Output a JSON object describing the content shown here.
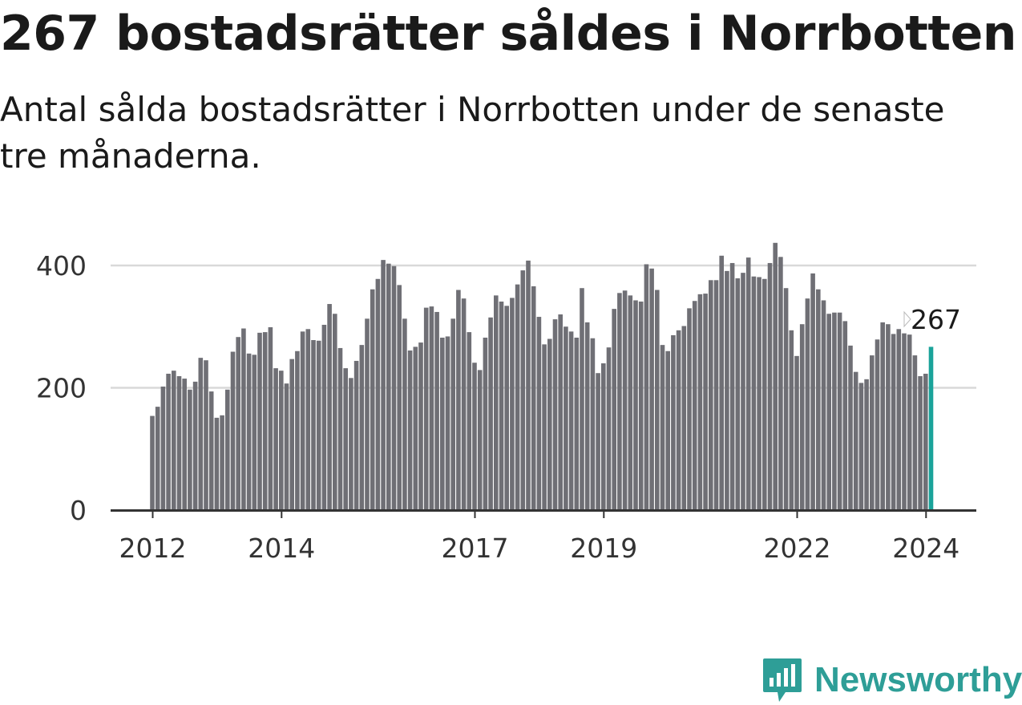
{
  "title": "267 bostadsrätter såldes i Norrbotten",
  "subtitle": "Antal sålda bostadsrätter i Norrbotten under de senaste tre månaderna.",
  "colors": {
    "bar": "#6f6f75",
    "highlight": "#1aa39a",
    "grid": "#d9d9d9",
    "axis": "#333333",
    "brand": "#2e9e97"
  },
  "brand": {
    "name": "Newsworthy",
    "icon": "newsworthy-logo-icon"
  },
  "chart_data": {
    "type": "bar",
    "title": "267 bostadsrätter såldes i Norrbotten",
    "subtitle": "Antal sålda bostadsrätter i Norrbotten under de senaste tre månaderna.",
    "xlabel": "",
    "ylabel": "",
    "ylim": [
      0,
      440
    ],
    "yticks": [
      0,
      200,
      400
    ],
    "xtick_labels": [
      "2012",
      "2014",
      "2017",
      "2019",
      "2022",
      "2024"
    ],
    "xtick_index": [
      0,
      24,
      60,
      84,
      120,
      144
    ],
    "grid": true,
    "legend": "none",
    "start": "2012-01",
    "frequency": "monthly",
    "highlight_label": "267",
    "values": [
      154,
      169,
      202,
      223,
      228,
      219,
      215,
      197,
      210,
      249,
      245,
      194,
      151,
      155,
      197,
      259,
      283,
      297,
      256,
      254,
      290,
      291,
      299,
      232,
      228,
      207,
      247,
      260,
      292,
      296,
      278,
      277,
      303,
      337,
      321,
      265,
      232,
      216,
      244,
      270,
      313,
      361,
      378,
      409,
      403,
      399,
      368,
      313,
      261,
      267,
      274,
      331,
      333,
      324,
      282,
      284,
      313,
      360,
      346,
      291,
      241,
      229,
      282,
      315,
      351,
      341,
      334,
      347,
      369,
      392,
      408,
      366,
      316,
      271,
      280,
      312,
      320,
      300,
      292,
      282,
      363,
      307,
      281,
      224,
      240,
      266,
      329,
      355,
      359,
      351,
      343,
      341,
      402,
      395,
      360,
      270,
      260,
      286,
      294,
      301,
      330,
      342,
      353,
      354,
      376,
      376,
      416,
      391,
      404,
      379,
      388,
      413,
      382,
      381,
      378,
      404,
      437,
      414,
      363,
      294,
      252,
      304,
      346,
      387,
      361,
      343,
      321,
      323,
      323,
      309,
      269,
      226,
      208,
      214,
      253,
      279,
      307,
      304,
      288,
      296,
      289,
      287,
      253,
      219,
      223,
      267
    ]
  }
}
